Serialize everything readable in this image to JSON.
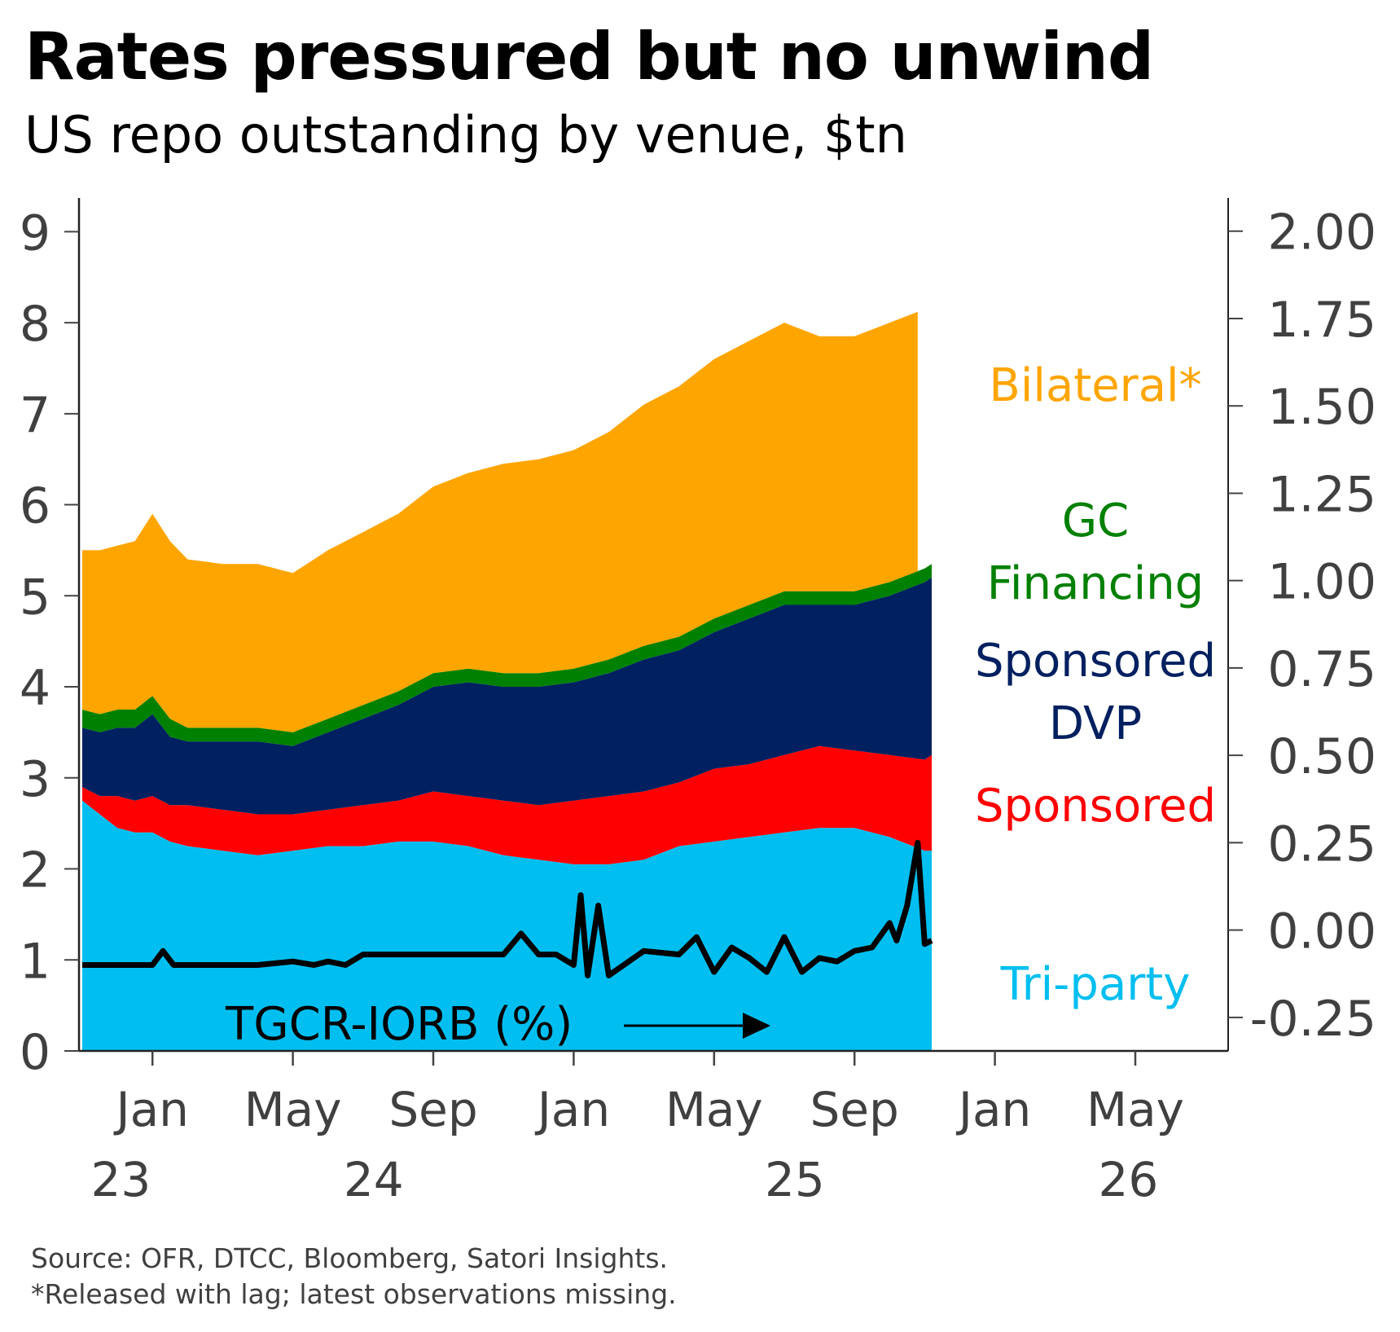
{
  "title": "Rates pressured but no unwind",
  "subtitle": "US repo outstanding by venue, $tn",
  "footer": {
    "source": "Source: OFR, DTCC, Bloomberg, Satori Insights.",
    "note": "*Released with lag; latest observations missing."
  },
  "chart_data": {
    "type": "area",
    "stacked": true,
    "title": "Rates pressured but no unwind",
    "subtitle": "US repo outstanding by venue, $tn",
    "x_months": [
      "Nov-22",
      "Dec-22",
      "Jan-23",
      "Feb-23",
      "Mar-23",
      "Apr-23",
      "May-23",
      "Jun-23",
      "Jul-23",
      "Aug-23",
      "Sep-23",
      "Oct-23",
      "Nov-23",
      "Dec-23",
      "Jan-24",
      "Feb-24",
      "Mar-24",
      "Apr-24",
      "May-24",
      "Jun-24",
      "Jul-24",
      "Aug-24",
      "Sep-24",
      "Oct-24",
      "Nov-24",
      "Dec-24"
    ],
    "x_ticks": [
      {
        "month_index": 2,
        "label": "Jan"
      },
      {
        "month_index": 6,
        "label": "May"
      },
      {
        "month_index": 10,
        "label": "Sep"
      },
      {
        "month_index": 14,
        "label": "Jan"
      },
      {
        "month_index": 18,
        "label": "May"
      },
      {
        "month_index": 22,
        "label": "Sep"
      },
      {
        "month_index": 26,
        "label": "Jan"
      },
      {
        "month_index": 30,
        "label": "May"
      }
    ],
    "x_year_labels": [
      {
        "month_index": 1.1,
        "label": "23"
      },
      {
        "month_index": 8.3,
        "label": "24"
      },
      {
        "month_index": 20.3,
        "label": "25"
      },
      {
        "month_index": 29.8,
        "label": "26"
      }
    ],
    "x_range": [
      -0.1,
      32.8
    ],
    "left_axis": {
      "label": "",
      "ylim": [
        0,
        9.37
      ],
      "ticks": [
        0,
        1,
        2,
        3,
        4,
        5,
        6,
        7,
        8,
        9
      ],
      "unit": "$tn"
    },
    "right_axis": {
      "label": "",
      "ylim": [
        -0.346,
        2.095
      ],
      "ticks": [
        "-0.25",
        "0.00",
        "0.25",
        "0.50",
        "0.75",
        "1.00",
        "1.25",
        "1.50",
        "1.75",
        "2.00"
      ],
      "tick_values": [
        -0.25,
        0,
        0.25,
        0.5,
        0.75,
        1.0,
        1.25,
        1.5,
        1.75,
        2.0
      ]
    },
    "series": [
      {
        "name": "Tri-party",
        "label": "Tri-party",
        "color": "#00BFF0",
        "x": [
          0,
          0.5,
          1,
          1.5,
          2,
          2.5,
          3,
          4,
          5,
          6,
          7,
          8,
          9,
          10,
          11,
          12,
          13,
          14,
          15,
          16,
          17,
          18,
          19,
          20,
          21,
          22,
          23,
          24,
          24.2
        ],
        "values": [
          2.75,
          2.6,
          2.45,
          2.4,
          2.4,
          2.3,
          2.25,
          2.2,
          2.15,
          2.2,
          2.25,
          2.25,
          2.3,
          2.3,
          2.25,
          2.15,
          2.1,
          2.05,
          2.05,
          2.1,
          2.25,
          2.3,
          2.35,
          2.4,
          2.45,
          2.45,
          2.35,
          2.2,
          2.2
        ]
      },
      {
        "name": "Sponsored",
        "label": "Sponsored",
        "color": "#FF0000",
        "x": [
          0,
          0.5,
          1,
          1.5,
          2,
          2.5,
          3,
          4,
          5,
          6,
          7,
          8,
          9,
          10,
          11,
          12,
          13,
          14,
          15,
          16,
          17,
          18,
          19,
          20,
          21,
          22,
          23,
          24,
          24.2
        ],
        "values": [
          0.15,
          0.2,
          0.35,
          0.35,
          0.4,
          0.4,
          0.45,
          0.45,
          0.45,
          0.4,
          0.4,
          0.45,
          0.45,
          0.55,
          0.55,
          0.6,
          0.6,
          0.7,
          0.75,
          0.75,
          0.7,
          0.8,
          0.8,
          0.85,
          0.9,
          0.85,
          0.9,
          1.0,
          1.05
        ]
      },
      {
        "name": "Sponsored DVP",
        "label": "Sponsored DVP",
        "color": "#002060",
        "x": [
          0,
          0.5,
          1,
          1.5,
          2,
          2.5,
          3,
          4,
          5,
          6,
          7,
          8,
          9,
          10,
          11,
          12,
          13,
          14,
          15,
          16,
          17,
          18,
          19,
          20,
          21,
          22,
          23,
          24,
          24.2
        ],
        "values": [
          0.65,
          0.7,
          0.75,
          0.8,
          0.9,
          0.75,
          0.7,
          0.75,
          0.8,
          0.75,
          0.85,
          0.95,
          1.05,
          1.15,
          1.25,
          1.25,
          1.3,
          1.3,
          1.35,
          1.45,
          1.45,
          1.5,
          1.6,
          1.65,
          1.55,
          1.6,
          1.75,
          1.95,
          1.95
        ]
      },
      {
        "name": "GC Financing",
        "label": "GC Financing",
        "color": "#008000",
        "x": [
          0,
          0.5,
          1,
          1.5,
          2,
          2.5,
          3,
          4,
          5,
          6,
          7,
          8,
          9,
          10,
          11,
          12,
          13,
          14,
          15,
          16,
          17,
          18,
          19,
          20,
          21,
          22,
          23,
          24,
          24.2
        ],
        "values": [
          0.2,
          0.2,
          0.2,
          0.2,
          0.2,
          0.2,
          0.15,
          0.15,
          0.15,
          0.15,
          0.15,
          0.15,
          0.15,
          0.15,
          0.15,
          0.15,
          0.15,
          0.15,
          0.15,
          0.15,
          0.15,
          0.15,
          0.15,
          0.15,
          0.15,
          0.15,
          0.15,
          0.15,
          0.15
        ]
      },
      {
        "name": "Bilateral*",
        "label": "Bilateral*",
        "color": "#FFA500",
        "x": [
          0,
          0.5,
          1,
          1.5,
          2,
          2.5,
          3,
          4,
          5,
          6,
          7,
          8,
          9,
          10,
          11,
          12,
          13,
          14,
          15,
          16,
          17,
          18,
          19,
          20,
          21,
          22,
          23,
          23.8
        ],
        "values": [
          1.75,
          1.8,
          1.8,
          1.85,
          2.0,
          1.95,
          1.85,
          1.8,
          1.8,
          1.75,
          1.85,
          1.9,
          1.95,
          2.05,
          2.15,
          2.3,
          2.35,
          2.4,
          2.5,
          2.65,
          2.75,
          2.85,
          2.9,
          2.95,
          2.8,
          2.8,
          2.85,
          2.85
        ]
      }
    ],
    "line_series": {
      "name": "TGCR-IORB (%)",
      "label": "TGCR-IORB (%)",
      "axis": "right",
      "color": "#000000",
      "x": [
        0,
        1,
        2,
        2.3,
        2.6,
        3,
        4,
        5,
        6,
        6.6,
        7,
        7.5,
        8,
        9,
        10,
        11,
        12,
        12.5,
        13,
        13.5,
        14,
        14.2,
        14.4,
        14.7,
        15,
        16,
        17,
        17.5,
        18,
        18.5,
        19,
        19.5,
        20,
        20.5,
        21,
        21.5,
        22,
        22.5,
        23,
        23.2,
        23.5,
        23.8,
        24,
        24.2
      ],
      "values": [
        -0.1,
        -0.1,
        -0.1,
        -0.06,
        -0.1,
        -0.1,
        -0.1,
        -0.1,
        -0.09,
        -0.1,
        -0.09,
        -0.1,
        -0.07,
        -0.07,
        -0.07,
        -0.07,
        -0.07,
        -0.01,
        -0.07,
        -0.07,
        -0.1,
        0.1,
        -0.13,
        0.07,
        -0.13,
        -0.06,
        -0.07,
        -0.02,
        -0.12,
        -0.05,
        -0.08,
        -0.12,
        -0.02,
        -0.12,
        -0.08,
        -0.09,
        -0.06,
        -0.05,
        0.02,
        -0.03,
        0.07,
        0.25,
        -0.04,
        -0.03
      ]
    },
    "annotation": {
      "text": "TGCR-IORB (%)",
      "arrow": "right"
    },
    "legend": "inline-right"
  }
}
